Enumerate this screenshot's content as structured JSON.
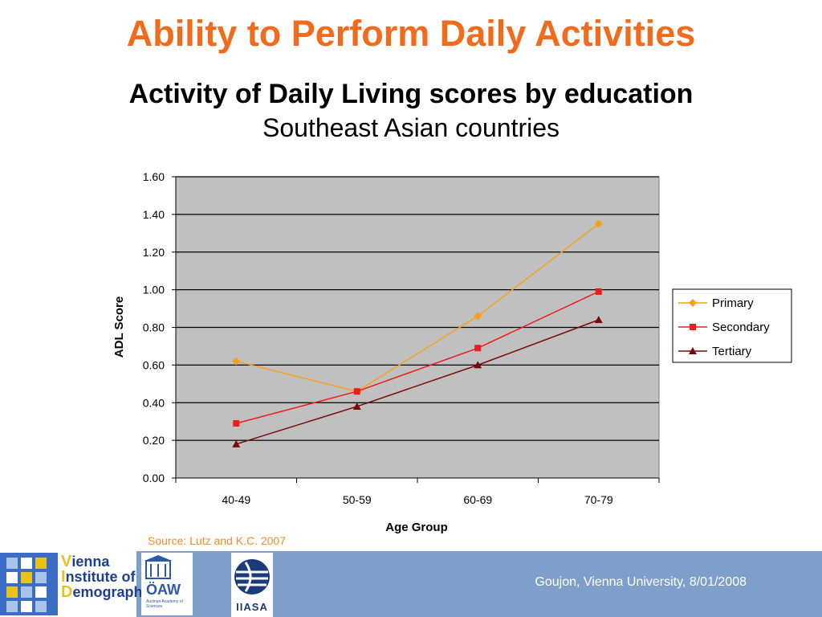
{
  "slide": {
    "title": "Ability to Perform Daily Activities",
    "subtitle": "Activity of Daily Living scores by education",
    "subtitle2": "Southeast Asian countries",
    "source": "Source: Lutz and K.C. 2007",
    "footer": "Goujon,  Vienna University, 8/01/2008"
  },
  "logos": {
    "vid": {
      "line1_cap": "V",
      "line1_rest": "ienna",
      "line2_cap": "I",
      "line2_rest": "nstitute of",
      "line3_cap": "D",
      "line3_rest": "emography"
    },
    "oaw": {
      "name": "ÖAW",
      "sub": "Austrian Academy of Sciences"
    },
    "iiasa": {
      "name": "IIASA"
    }
  },
  "colors": {
    "title": "#f26b1d",
    "plot_background": "#c0c0c0",
    "footer_band": "#7f9fcb",
    "source_text": "#f28a2e"
  },
  "chart_data": {
    "type": "line",
    "xlabel": "Age Group",
    "ylabel": "ADL Score",
    "categories": [
      "40-49",
      "50-59",
      "60-69",
      "70-79"
    ],
    "ylim": [
      0,
      1.6
    ],
    "yticks": [
      "0.00",
      "0.20",
      "0.40",
      "0.60",
      "0.80",
      "1.00",
      "1.20",
      "1.40",
      "1.60"
    ],
    "ytick_values": [
      0,
      0.2,
      0.4,
      0.6,
      0.8,
      1.0,
      1.2,
      1.4,
      1.6
    ],
    "grid": true,
    "legend_position": "right",
    "series": [
      {
        "name": "Primary",
        "color": "#f7a11a",
        "marker": "diamond",
        "values": [
          0.62,
          0.46,
          0.86,
          1.35
        ]
      },
      {
        "name": "Secondary",
        "color": "#ee1c1c",
        "marker": "square",
        "values": [
          0.29,
          0.46,
          0.69,
          0.99
        ]
      },
      {
        "name": "Tertiary",
        "color": "#7a0a0a",
        "marker": "triangle",
        "values": [
          0.18,
          0.38,
          0.6,
          0.84
        ]
      }
    ]
  }
}
